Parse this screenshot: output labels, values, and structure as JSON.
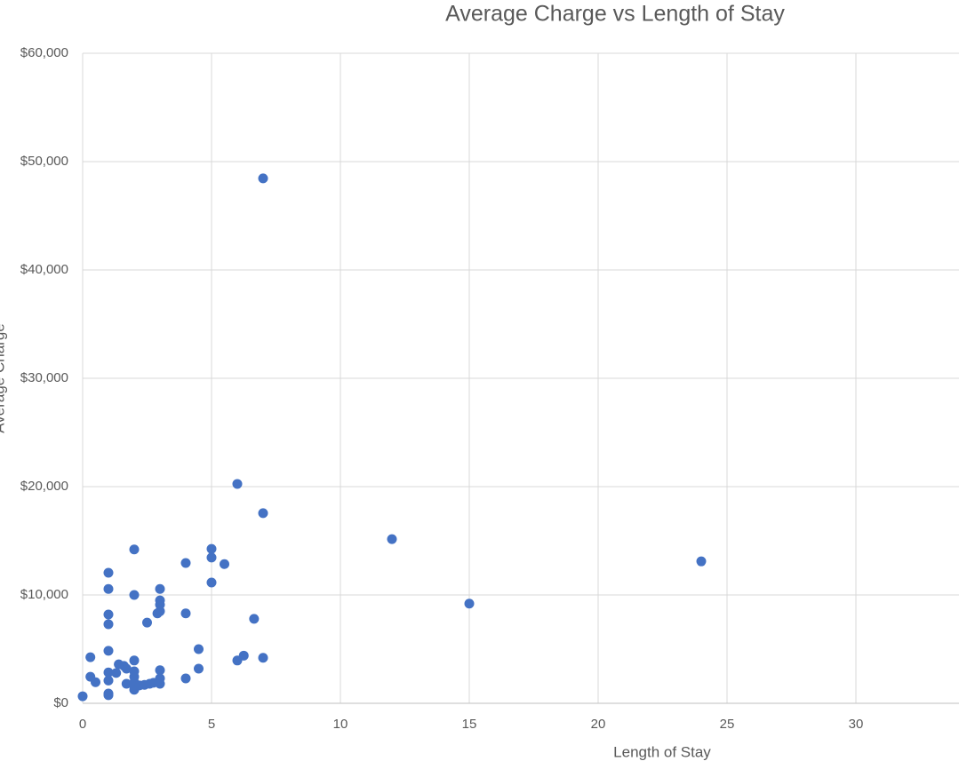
{
  "chart_data": {
    "type": "scatter",
    "title": "Average Charge vs Length of Stay",
    "x_label": "Length of Stay",
    "y_label": "Average Charge",
    "color": "#4472c4",
    "grid": true,
    "xlim": [
      0,
      34
    ],
    "xticks": [
      0,
      5,
      10,
      15,
      20,
      25,
      30
    ],
    "ylim": [
      0,
      60000
    ],
    "yticks": [
      {
        "value": 0,
        "label": "$0"
      },
      {
        "value": 10000,
        "label": "$10,000"
      },
      {
        "value": 20000,
        "label": "$20,000"
      },
      {
        "value": 30000,
        "label": "$30,000"
      },
      {
        "value": 40000,
        "label": "$40,000"
      },
      {
        "value": 50000,
        "label": "$50,000"
      },
      {
        "value": 60000,
        "label": "$60,000"
      }
    ],
    "x": [
      0,
      0.3,
      0.3,
      0.5,
      1,
      1,
      1,
      1,
      1,
      1,
      1,
      1,
      1,
      1.3,
      1.4,
      1.6,
      1.7,
      1.7,
      2,
      2,
      2,
      2,
      2,
      2,
      2,
      2,
      2.2,
      2.4,
      2.6,
      2.75,
      2.5,
      3,
      3,
      3,
      3,
      2.9,
      3,
      3,
      3,
      4,
      4,
      4,
      4.5,
      4.5,
      5,
      5,
      5,
      5.5,
      6,
      6,
      6.25,
      6.65,
      7,
      7,
      7,
      12,
      15,
      24
    ],
    "values": [
      650,
      4250,
      2450,
      1950,
      12050,
      10550,
      8200,
      7300,
      4850,
      2850,
      2100,
      900,
      750,
      2800,
      3600,
      3450,
      3200,
      1800,
      14200,
      10000,
      3950,
      2950,
      2450,
      1950,
      1550,
      1250,
      1650,
      1700,
      1800,
      1900,
      7450,
      10550,
      9500,
      9100,
      8500,
      8300,
      3050,
      2300,
      1800,
      12950,
      8300,
      2300,
      5000,
      3200,
      14250,
      13450,
      11150,
      12850,
      20250,
      3950,
      4400,
      7800,
      48450,
      17550,
      4200,
      15150,
      9200,
      13100
    ]
  }
}
